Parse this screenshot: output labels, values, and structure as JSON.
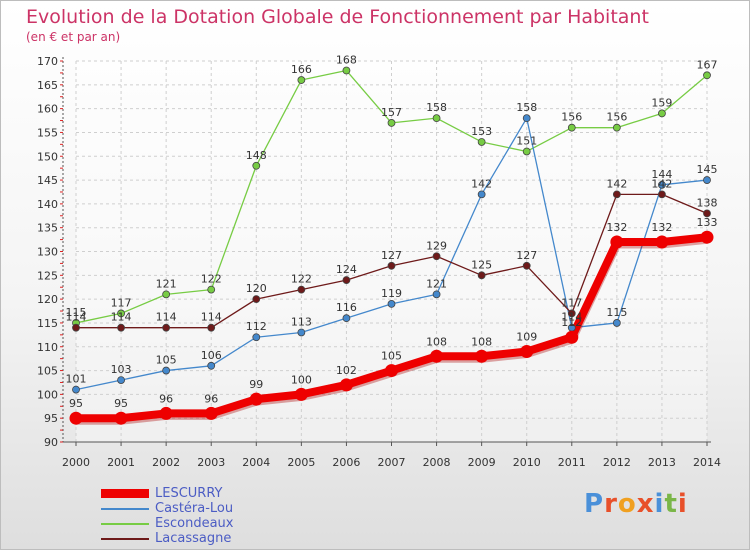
{
  "title": "Evolution de la Dotation Globale de Fonctionnement par Habitant",
  "subtitle": "(en € et par an)",
  "logo": {
    "text": "Proxiti",
    "colors": [
      "#4a90d9",
      "#e8502a",
      "#f0a020",
      "#e8502a",
      "#4a90d9",
      "#7ab648",
      "#e8502a"
    ]
  },
  "chart_data": {
    "type": "line",
    "x": [
      "2000",
      "2001",
      "2002",
      "2003",
      "2004",
      "2005",
      "2006",
      "2007",
      "2008",
      "2009",
      "2010",
      "2011",
      "2012",
      "2013",
      "2014"
    ],
    "ylim": [
      90,
      170
    ],
    "yticks": [
      90,
      95,
      100,
      105,
      110,
      115,
      120,
      125,
      130,
      135,
      140,
      145,
      150,
      155,
      160,
      165,
      170
    ],
    "grid": true,
    "legend_position": "bottom-left",
    "series": [
      {
        "name": "Escondeaux",
        "color": "#77cc44",
        "values": [
          115,
          117,
          121,
          122,
          148,
          166,
          168,
          157,
          158,
          153,
          151,
          156,
          156,
          159,
          167
        ],
        "labels": [
          "115",
          "117",
          "121",
          "122",
          "148",
          "166",
          "168",
          "157",
          "158",
          "153",
          "151",
          "156",
          "156",
          "159",
          "167"
        ]
      },
      {
        "name": "Castéra-Lou",
        "color": "#4488cc",
        "values": [
          101,
          103,
          105,
          106,
          112,
          113,
          116,
          119,
          121,
          142,
          158,
          114,
          115,
          144,
          145
        ],
        "labels": [
          "101",
          "103",
          "105",
          "106",
          "112",
          "113",
          "116",
          "119",
          "121",
          "142",
          "158",
          "114",
          "115",
          "144",
          "145"
        ]
      },
      {
        "name": "Lacassagne",
        "color": "#6e1a1a",
        "values": [
          114,
          114,
          114,
          114,
          120,
          122,
          124,
          127,
          129,
          125,
          127,
          117,
          142,
          142,
          138
        ],
        "labels": [
          "114",
          "114",
          "114",
          "114",
          "120",
          "122",
          "124",
          "127",
          "129",
          "125",
          "127",
          "117",
          "142",
          "142",
          "138"
        ]
      },
      {
        "name": "LESCURRY",
        "color": "#ee0000",
        "values": [
          95,
          95,
          96,
          96,
          99,
          100,
          102,
          105,
          108,
          108,
          109,
          112,
          132,
          132,
          133
        ],
        "labels": [
          "95",
          "95",
          "96",
          "96",
          "99",
          "100",
          "102",
          "105",
          "108",
          "108",
          "109",
          "112",
          "132",
          "132",
          "133"
        ]
      }
    ],
    "legend": [
      {
        "name": "LESCURRY",
        "color": "#ee0000",
        "thick": true
      },
      {
        "name": "Castéra-Lou",
        "color": "#4488cc",
        "thick": false
      },
      {
        "name": "Escondeaux",
        "color": "#77cc44",
        "thick": false
      },
      {
        "name": "Lacassagne",
        "color": "#6e1a1a",
        "thick": false
      }
    ]
  }
}
